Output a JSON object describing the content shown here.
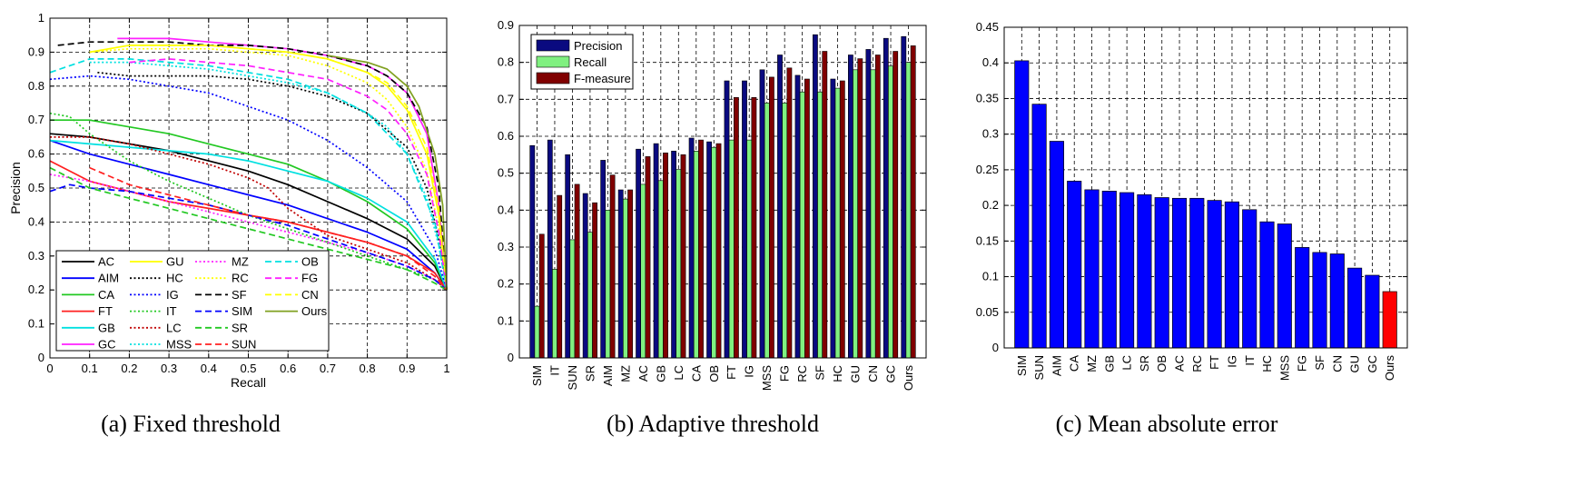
{
  "chart_data": [
    {
      "type": "line",
      "caption": "(a)  Fixed threshold",
      "xlabel": "Recall",
      "ylabel": "Precision",
      "xlim": [
        0,
        1
      ],
      "ylim": [
        0,
        1
      ],
      "xticks": [
        0,
        0.1,
        0.2,
        0.3,
        0.4,
        0.5,
        0.6,
        0.7,
        0.8,
        0.9,
        1
      ],
      "yticks": [
        0,
        0.1,
        0.2,
        0.3,
        0.4,
        0.5,
        0.6,
        0.7,
        0.8,
        0.9,
        1
      ],
      "grid": true,
      "legend": "bottom-left",
      "series": [
        {
          "name": "AC",
          "color": "#000000",
          "dash": "solid",
          "x": [
            0,
            0.1,
            0.2,
            0.3,
            0.4,
            0.5,
            0.6,
            0.7,
            0.8,
            0.9,
            0.97,
            1
          ],
          "y": [
            0.66,
            0.65,
            0.63,
            0.61,
            0.58,
            0.55,
            0.51,
            0.46,
            0.41,
            0.35,
            0.27,
            0.2
          ]
        },
        {
          "name": "AIM",
          "color": "#0000ff",
          "dash": "solid",
          "x": [
            0,
            0.1,
            0.2,
            0.3,
            0.4,
            0.5,
            0.6,
            0.7,
            0.8,
            0.9,
            0.97,
            1
          ],
          "y": [
            0.64,
            0.6,
            0.57,
            0.54,
            0.51,
            0.48,
            0.45,
            0.41,
            0.37,
            0.32,
            0.25,
            0.2
          ]
        },
        {
          "name": "CA",
          "color": "#22c822",
          "dash": "solid",
          "x": [
            0,
            0.1,
            0.2,
            0.3,
            0.4,
            0.5,
            0.6,
            0.7,
            0.8,
            0.9,
            0.97,
            1
          ],
          "y": [
            0.7,
            0.7,
            0.68,
            0.66,
            0.63,
            0.6,
            0.57,
            0.52,
            0.46,
            0.38,
            0.28,
            0.2
          ]
        },
        {
          "name": "FT",
          "color": "#ff2020",
          "dash": "solid",
          "x": [
            0,
            0.1,
            0.2,
            0.3,
            0.4,
            0.5,
            0.6,
            0.7,
            0.8,
            0.9,
            0.97,
            1
          ],
          "y": [
            0.58,
            0.52,
            0.49,
            0.46,
            0.44,
            0.42,
            0.4,
            0.37,
            0.34,
            0.3,
            0.25,
            0.2
          ]
        },
        {
          "name": "GB",
          "color": "#00e0e0",
          "dash": "solid",
          "x": [
            0,
            0.1,
            0.2,
            0.3,
            0.4,
            0.5,
            0.6,
            0.7,
            0.8,
            0.9,
            0.97,
            1
          ],
          "y": [
            0.64,
            0.63,
            0.62,
            0.61,
            0.6,
            0.58,
            0.55,
            0.52,
            0.47,
            0.4,
            0.29,
            0.2
          ]
        },
        {
          "name": "GC",
          "color": "#ff20ff",
          "dash": "solid",
          "x": [
            0.17,
            0.3,
            0.4,
            0.5,
            0.6,
            0.7,
            0.8,
            0.85,
            0.9,
            0.95,
            0.98,
            1
          ],
          "y": [
            0.94,
            0.94,
            0.93,
            0.92,
            0.91,
            0.89,
            0.86,
            0.83,
            0.78,
            0.66,
            0.45,
            0.2
          ]
        },
        {
          "name": "GU",
          "color": "#ffff00",
          "dash": "solid",
          "x": [
            0.1,
            0.2,
            0.3,
            0.4,
            0.5,
            0.6,
            0.7,
            0.8,
            0.85,
            0.9,
            0.95,
            0.98,
            1
          ],
          "y": [
            0.9,
            0.92,
            0.92,
            0.92,
            0.91,
            0.9,
            0.88,
            0.84,
            0.8,
            0.73,
            0.6,
            0.42,
            0.2
          ]
        },
        {
          "name": "HC",
          "color": "#000000",
          "dash": "dot",
          "x": [
            0.12,
            0.2,
            0.3,
            0.4,
            0.5,
            0.6,
            0.7,
            0.8,
            0.9,
            0.95,
            0.98,
            1
          ],
          "y": [
            0.84,
            0.83,
            0.83,
            0.83,
            0.82,
            0.8,
            0.77,
            0.72,
            0.62,
            0.5,
            0.35,
            0.2
          ]
        },
        {
          "name": "IG",
          "color": "#0000ff",
          "dash": "dot",
          "x": [
            0,
            0.1,
            0.2,
            0.3,
            0.4,
            0.5,
            0.6,
            0.7,
            0.8,
            0.9,
            0.97,
            1
          ],
          "y": [
            0.82,
            0.83,
            0.82,
            0.8,
            0.78,
            0.74,
            0.7,
            0.64,
            0.56,
            0.46,
            0.32,
            0.2
          ]
        },
        {
          "name": "IT",
          "color": "#22c822",
          "dash": "dot",
          "x": [
            0,
            0.05,
            0.1,
            0.2,
            0.3,
            0.4,
            0.5,
            0.6,
            0.7,
            0.8,
            0.9,
            0.97,
            1
          ],
          "y": [
            0.72,
            0.71,
            0.66,
            0.58,
            0.52,
            0.47,
            0.42,
            0.38,
            0.34,
            0.3,
            0.26,
            0.23,
            0.2
          ]
        },
        {
          "name": "LC",
          "color": "#c00000",
          "dash": "dot",
          "x": [
            0,
            0.1,
            0.2,
            0.3,
            0.4,
            0.5,
            0.55,
            0.6,
            0.7,
            0.8,
            0.9,
            0.97,
            1
          ],
          "y": [
            0.65,
            0.65,
            0.63,
            0.6,
            0.57,
            0.53,
            0.5,
            0.44,
            0.36,
            0.32,
            0.28,
            0.23,
            0.2
          ]
        },
        {
          "name": "MSS",
          "color": "#00e0e0",
          "dash": "dot",
          "x": [
            0.1,
            0.2,
            0.3,
            0.4,
            0.5,
            0.6,
            0.7,
            0.8,
            0.85,
            0.9,
            0.95,
            0.98,
            1
          ],
          "y": [
            0.87,
            0.87,
            0.86,
            0.85,
            0.83,
            0.81,
            0.78,
            0.72,
            0.68,
            0.6,
            0.47,
            0.33,
            0.2
          ]
        },
        {
          "name": "MZ",
          "color": "#ff20ff",
          "dash": "dot",
          "x": [
            0,
            0.1,
            0.2,
            0.3,
            0.4,
            0.5,
            0.6,
            0.7,
            0.8,
            0.9,
            0.97,
            1
          ],
          "y": [
            0.54,
            0.52,
            0.49,
            0.46,
            0.43,
            0.4,
            0.37,
            0.34,
            0.31,
            0.27,
            0.23,
            0.2
          ]
        },
        {
          "name": "RC",
          "color": "#ffff00",
          "dash": "dot",
          "x": [
            0.1,
            0.2,
            0.3,
            0.4,
            0.5,
            0.6,
            0.7,
            0.8,
            0.85,
            0.9,
            0.95,
            0.98,
            1
          ],
          "y": [
            0.9,
            0.91,
            0.91,
            0.91,
            0.9,
            0.89,
            0.86,
            0.81,
            0.76,
            0.68,
            0.55,
            0.38,
            0.2
          ]
        },
        {
          "name": "SF",
          "color": "#000000",
          "dash": "dash",
          "x": [
            0.02,
            0.1,
            0.2,
            0.3,
            0.4,
            0.5,
            0.6,
            0.7,
            0.8,
            0.85,
            0.9,
            0.95,
            0.98,
            1
          ],
          "y": [
            0.92,
            0.93,
            0.93,
            0.93,
            0.92,
            0.92,
            0.91,
            0.89,
            0.86,
            0.83,
            0.78,
            0.68,
            0.5,
            0.2
          ]
        },
        {
          "name": "SIM",
          "color": "#0000ff",
          "dash": "dash",
          "x": [
            0,
            0.05,
            0.1,
            0.2,
            0.3,
            0.4,
            0.5,
            0.6,
            0.7,
            0.8,
            0.9,
            0.97,
            1
          ],
          "y": [
            0.49,
            0.51,
            0.5,
            0.49,
            0.47,
            0.45,
            0.42,
            0.39,
            0.35,
            0.31,
            0.27,
            0.23,
            0.2
          ]
        },
        {
          "name": "SR",
          "color": "#22c822",
          "dash": "dash",
          "x": [
            0,
            0.1,
            0.2,
            0.3,
            0.4,
            0.5,
            0.6,
            0.7,
            0.8,
            0.9,
            0.97,
            1
          ],
          "y": [
            0.56,
            0.5,
            0.47,
            0.44,
            0.41,
            0.38,
            0.35,
            0.32,
            0.29,
            0.26,
            0.22,
            0.2
          ]
        },
        {
          "name": "SUN",
          "color": "#ff2020",
          "dash": "dash",
          "x": [
            0.1,
            0.2,
            0.3,
            0.4,
            0.5,
            0.6,
            0.7,
            0.8,
            0.9,
            0.97,
            1
          ],
          "y": [
            0.56,
            0.51,
            0.48,
            0.45,
            0.42,
            0.4,
            0.37,
            0.34,
            0.3,
            0.24,
            0.2
          ]
        },
        {
          "name": "OB",
          "color": "#00e0e0",
          "dash": "dash",
          "x": [
            0,
            0.1,
            0.2,
            0.3,
            0.4,
            0.5,
            0.6,
            0.7,
            0.8,
            0.9,
            0.97,
            1
          ],
          "y": [
            0.84,
            0.88,
            0.88,
            0.87,
            0.86,
            0.84,
            0.82,
            0.78,
            0.72,
            0.6,
            0.4,
            0.2
          ]
        },
        {
          "name": "FG",
          "color": "#ff20ff",
          "dash": "dash",
          "x": [
            0.2,
            0.3,
            0.4,
            0.5,
            0.6,
            0.7,
            0.8,
            0.85,
            0.9,
            0.95,
            0.98,
            1
          ],
          "y": [
            0.87,
            0.88,
            0.87,
            0.86,
            0.84,
            0.82,
            0.77,
            0.73,
            0.66,
            0.54,
            0.37,
            0.2
          ]
        },
        {
          "name": "CN",
          "color": "#ffff00",
          "dash": "dash",
          "x": [
            0.2,
            0.3,
            0.4,
            0.5,
            0.6,
            0.7,
            0.8,
            0.85,
            0.9,
            0.95,
            0.98,
            1
          ],
          "y": [
            0.92,
            0.92,
            0.92,
            0.91,
            0.9,
            0.88,
            0.84,
            0.81,
            0.74,
            0.62,
            0.44,
            0.2
          ]
        },
        {
          "name": "Ours",
          "color": "#80a020",
          "dash": "solid",
          "x": [
            0.7,
            0.75,
            0.8,
            0.85,
            0.9,
            0.93,
            0.95,
            0.97,
            0.99,
            1
          ],
          "y": [
            0.89,
            0.88,
            0.87,
            0.85,
            0.8,
            0.74,
            0.67,
            0.6,
            0.45,
            0.2
          ]
        }
      ]
    },
    {
      "type": "bar",
      "caption": "(b)  Adaptive threshold",
      "ylim": [
        0,
        0.9
      ],
      "yticks": [
        0,
        0.1,
        0.2,
        0.3,
        0.4,
        0.5,
        0.6,
        0.7,
        0.8,
        0.9
      ],
      "grid": true,
      "legend": "top-left",
      "categories": [
        "SIM",
        "IT",
        "SUN",
        "SR",
        "AIM",
        "MZ",
        "AC",
        "GB",
        "LC",
        "CA",
        "OB",
        "FT",
        "IG",
        "MSS",
        "FG",
        "RC",
        "SF",
        "HC",
        "GU",
        "CN",
        "GC",
        "Ours"
      ],
      "series": [
        {
          "name": "Precision",
          "color": "#0a0a80",
          "values": [
            0.575,
            0.59,
            0.55,
            0.445,
            0.535,
            0.455,
            0.565,
            0.58,
            0.56,
            0.595,
            0.585,
            0.75,
            0.75,
            0.78,
            0.82,
            0.765,
            0.875,
            0.755,
            0.82,
            0.835,
            0.865,
            0.87
          ]
        },
        {
          "name": "Recall",
          "color": "#80f080",
          "values": [
            0.14,
            0.24,
            0.32,
            0.34,
            0.4,
            0.43,
            0.47,
            0.48,
            0.51,
            0.56,
            0.57,
            0.59,
            0.59,
            0.69,
            0.69,
            0.72,
            0.72,
            0.73,
            0.78,
            0.78,
            0.79,
            0.8
          ]
        },
        {
          "name": "F-measure",
          "color": "#800000",
          "values": [
            0.335,
            0.44,
            0.47,
            0.42,
            0.495,
            0.455,
            0.545,
            0.555,
            0.55,
            0.59,
            0.58,
            0.705,
            0.705,
            0.76,
            0.785,
            0.755,
            0.83,
            0.75,
            0.81,
            0.82,
            0.83,
            0.845
          ]
        }
      ]
    },
    {
      "type": "bar",
      "caption": "(c)  Mean absolute error",
      "ylim": [
        0,
        0.45
      ],
      "yticks": [
        0,
        0.05,
        0.1,
        0.15,
        0.2,
        0.25,
        0.3,
        0.35,
        0.4,
        0.45
      ],
      "grid": true,
      "categories": [
        "SIM",
        "SUN",
        "AIM",
        "CA",
        "MZ",
        "GB",
        "LC",
        "SR",
        "OB",
        "AC",
        "RC",
        "FT",
        "IG",
        "IT",
        "HC",
        "MSS",
        "FG",
        "SF",
        "CN",
        "GU",
        "GC",
        "Ours"
      ],
      "values": [
        0.403,
        0.342,
        0.29,
        0.234,
        0.222,
        0.22,
        0.218,
        0.215,
        0.211,
        0.21,
        0.21,
        0.207,
        0.205,
        0.194,
        0.177,
        0.174,
        0.141,
        0.134,
        0.132,
        0.112,
        0.102,
        0.079
      ],
      "colors": {
        "bar": "#0000ff",
        "highlight": "#ff0000"
      },
      "highlight_category": "Ours"
    }
  ]
}
